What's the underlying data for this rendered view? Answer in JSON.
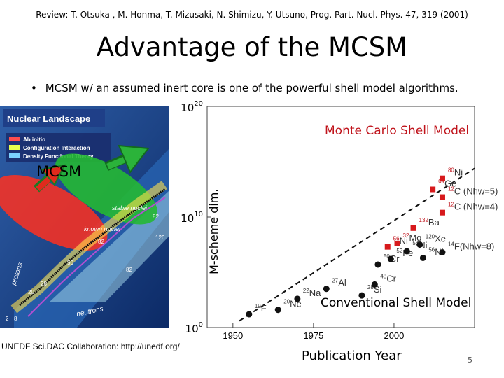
{
  "reference": "Review: T. Otsuka , M. Honma, T. Mizusaki, N. Shimizu, Y. Utsuno, Prog. Part. Nucl. Phys. 47, 319 (2001)",
  "title": "Advantage of the MCSM",
  "bullet": {
    "marker": "•",
    "text": "MCSM w/ an assumed inert core is one of the powerful shell model algorithms."
  },
  "landscape": {
    "title": "Nuclear Landscape",
    "legend": [
      "Ab initio",
      "Configuration Interaction",
      "Density Functional Theory"
    ],
    "stable_label": "stable nuclei",
    "known_label": "known nuclei",
    "protons_label": "protons",
    "neutrons_label": "neutrons",
    "magic_numbers_bottom": [
      "2",
      "8",
      "20",
      "28",
      "50",
      "82"
    ],
    "magic_numbers_top": [
      "82",
      "126",
      "82"
    ],
    "arrow_colors": {
      "red": "#e02a1c",
      "green": "#2bb33a"
    }
  },
  "mcsm_label": "MCSM",
  "credit": "UNEDF Sci.DAC Collaboration: http://unedf.org/",
  "chart_data": {
    "type": "scatter",
    "title": "",
    "xlabel": "Publication Year",
    "ylabel": "M-scheme dim.",
    "ylog": true,
    "xlim": [
      1942,
      2025
    ],
    "ylim_exp": [
      0,
      20
    ],
    "x_ticks": [
      "1950",
      "1975",
      "2000"
    ],
    "x_tick_values": [
      1950,
      1975,
      2000
    ],
    "y_ticks": [
      {
        "base": "10",
        "exp": "0",
        "value": 0
      },
      {
        "base": "10",
        "exp": "10",
        "value": 10
      },
      {
        "base": "10",
        "exp": "20",
        "value": 20
      }
    ],
    "trend_line": {
      "x": [
        1952,
        2025
      ],
      "log10_y": [
        0.6,
        14.4
      ]
    },
    "series": [
      {
        "name": "Conventional Shell Model",
        "color": "#111111",
        "points": [
          {
            "x": 1955,
            "log10_y": 1.2,
            "mass": "19",
            "label": "F"
          },
          {
            "x": 1964,
            "log10_y": 1.6,
            "mass": "20",
            "label": "Ne"
          },
          {
            "x": 1970,
            "log10_y": 2.6,
            "mass": "22",
            "label": "Na"
          },
          {
            "x": 1979,
            "log10_y": 3.5,
            "mass": "27",
            "label": "Al"
          },
          {
            "x": 1990,
            "log10_y": 2.9,
            "mass": "28",
            "label": "Si"
          },
          {
            "x": 1994,
            "log10_y": 3.9,
            "mass": "48",
            "label": "Cr"
          },
          {
            "x": 1995,
            "log10_y": 5.7,
            "mass": "50",
            "label": "Cr"
          },
          {
            "x": 1999,
            "log10_y": 6.2,
            "mass": "52",
            "label": "Fe"
          },
          {
            "x": 2004,
            "log10_y": 6.9,
            "mass": "56",
            "label": "Ni"
          },
          {
            "x": 2008,
            "log10_y": 7.5,
            "mass": "120",
            "label": "Xe"
          },
          {
            "x": 2009,
            "log10_y": 6.3,
            "mass": "56",
            "label": "Ni"
          },
          {
            "x": 2015,
            "log10_y": 6.8,
            "mass": "14",
            "label": "F(Nhw=8)"
          }
        ]
      },
      {
        "name": "Monte Carlo Shell Model",
        "color": "#d7191c",
        "points": [
          {
            "x": 1998,
            "log10_y": 7.3,
            "mass": "56",
            "label": "Ni"
          },
          {
            "x": 2001,
            "log10_y": 7.6,
            "mass": "32",
            "label": "Mg"
          },
          {
            "x": 2006,
            "log10_y": 9.0,
            "mass": "132",
            "label": "Ba"
          },
          {
            "x": 2012,
            "log10_y": 12.5,
            "mass": "64",
            "label": "Ge"
          },
          {
            "x": 2015,
            "log10_y": 13.5,
            "mass": "80",
            "label": "Ni"
          },
          {
            "x": 2015,
            "log10_y": 11.8,
            "mass": "12",
            "label": "C (Nhw=5)"
          },
          {
            "x": 2015,
            "log10_y": 10.4,
            "mass": "12",
            "label": "C (Nhw=4)"
          }
        ]
      }
    ],
    "annotations": {
      "mc_label": "Monte Carlo Shell Model",
      "conv_label": "Conventional Shell Model"
    }
  },
  "page_number": "5"
}
